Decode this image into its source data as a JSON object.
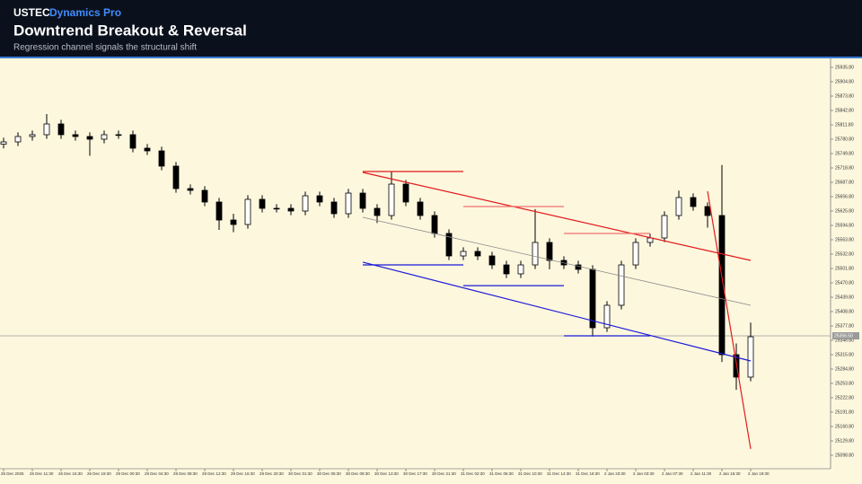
{
  "chart_data": {
    "type": "candlestick",
    "symbol": "USTEC",
    "brand": "Dynamics Pro",
    "title": "Downtrend Breakout & Reversal",
    "subtitle": "Regression channel signals the structural shift",
    "categories": [
      "25 Dec 2025",
      null,
      "26 Dec 11:30",
      null,
      "26 Dec 15:30",
      null,
      "26 Dec 19:30",
      null,
      "29 Dec 00:30",
      null,
      "29 Dec 04:30",
      null,
      "29 Dec 08:30",
      null,
      "29 Dec 12:30",
      null,
      "29 Dec 16:30",
      null,
      "29 Dec 20:30",
      null,
      "30 Dec 01:30",
      null,
      "30 Dec 05:30",
      null,
      "30 Dec 09:30",
      null,
      "30 Dec 13:30",
      null,
      "30 Dec 17:30",
      null,
      "30 Dec 21:30",
      null,
      "31 Dec 02:30",
      null,
      "31 Dec 06:30",
      null,
      "31 Dec 10:30",
      null,
      "31 Dec 14:30",
      null,
      "31 Dec 18:30",
      null,
      "2 Jan 23:30",
      null,
      "2 Jan 03:30",
      null,
      "2 Jan 07:30",
      null,
      "2 Jan 11:30",
      null,
      "2 Jan 15:30",
      null,
      "2 Jan 19:30"
    ],
    "open": [
      25770.0,
      25775.0,
      25786.6,
      25790.5,
      25813.7,
      25790.5,
      25786.6,
      25780.8,
      25790.5,
      25790.5,
      25761.4,
      25755.6,
      25722.7,
      25674.2,
      25670.4,
      25645.2,
      25606.4,
      25596.7,
      25651.0,
      25631.6,
      25631.6,
      25625.8,
      25658.7,
      25645.2,
      25620.0,
      25664.5,
      25631.6,
      25616.1,
      25683.9,
      25645.2,
      25616.1,
      25577.4,
      25528.9,
      25538.6,
      25528.9,
      25509.5,
      25490.2,
      25509.5,
      25558.0,
      25519.2,
      25509.5,
      25499.9,
      25373.9,
      25422.4,
      25509.5,
      25558.0,
      25567.7,
      25616.1,
      25654.9,
      25635.5,
      25616.1,
      25315.8,
      25267.4
    ],
    "high": [
      25784.0,
      25795.6,
      25799.5,
      25835.0,
      25822.7,
      25799.5,
      25795.6,
      25799.5,
      25799.5,
      25799.5,
      25770.4,
      25764.6,
      25731.7,
      25683.2,
      25679.4,
      25654.2,
      25620.0,
      25660.0,
      25660.0,
      25640.6,
      25640.6,
      25667.7,
      25667.7,
      25654.2,
      25673.5,
      25673.5,
      25640.6,
      25710.0,
      25692.9,
      25654.2,
      25625.1,
      25586.4,
      25547.6,
      25547.6,
      25537.9,
      25518.5,
      25518.5,
      25630.0,
      25567.0,
      25528.2,
      25518.5,
      25508.9,
      25431.4,
      25518.5,
      25567.0,
      25576.7,
      25625.1,
      25670.0,
      25663.9,
      25644.5,
      25725.0,
      25340.0,
      25385.0
    ],
    "low": [
      25761.0,
      25766.0,
      25777.6,
      25781.5,
      25781.5,
      25777.6,
      25745.0,
      25771.8,
      25781.5,
      25752.4,
      25746.6,
      25713.7,
      25665.2,
      25661.4,
      25636.2,
      25585.0,
      25580.0,
      25587.7,
      25622.6,
      25622.6,
      25616.8,
      25616.8,
      25636.2,
      25611.0,
      25611.0,
      25622.6,
      25600.0,
      25607.1,
      25636.2,
      25607.1,
      25568.4,
      25519.9,
      25519.9,
      25519.9,
      25500.5,
      25481.2,
      25481.2,
      25500.5,
      25500.0,
      25500.5,
      25490.9,
      25355.0,
      25364.9,
      25413.4,
      25500.5,
      25549.0,
      25558.7,
      25607.1,
      25626.5,
      25590.0,
      25300.0,
      25240.0,
      25258.4
    ],
    "close": [
      25775.0,
      25786.6,
      25790.5,
      25813.7,
      25790.5,
      25786.6,
      25780.8,
      25790.5,
      25790.5,
      25761.4,
      25755.6,
      25722.7,
      25674.2,
      25670.4,
      25645.2,
      25606.4,
      25596.7,
      25651.0,
      25631.6,
      25631.6,
      25625.8,
      25658.7,
      25645.2,
      25620.0,
      25664.5,
      25631.6,
      25616.1,
      25683.9,
      25645.2,
      25616.1,
      25577.4,
      25528.9,
      25538.6,
      25528.9,
      25509.5,
      25490.2,
      25509.5,
      25558.0,
      25519.2,
      25509.5,
      25499.9,
      25373.9,
      25422.4,
      25509.5,
      25558.0,
      25567.7,
      25616.1,
      25654.9,
      25635.5,
      25616.1,
      25315.8,
      25267.4,
      25354.5
    ],
    "ylim": [
      25069.7,
      25955.2
    ],
    "yticks": [
      {
        "value": 25935.8,
        "label": "25935.80"
      },
      {
        "value": 25904.8,
        "label": "25904.80"
      },
      {
        "value": 25873.8,
        "label": "25873.80"
      },
      {
        "value": 25842.8,
        "label": "25842.80"
      },
      {
        "value": 25811.8,
        "label": "25811.80"
      },
      {
        "value": 25780.8,
        "label": "25780.80"
      },
      {
        "value": 25749.8,
        "label": "25749.80"
      },
      {
        "value": 25718.8,
        "label": "25718.80"
      },
      {
        "value": 25687.8,
        "label": "25687.80"
      },
      {
        "value": 25656.8,
        "label": "25656.80"
      },
      {
        "value": 25625.8,
        "label": "25625.80"
      },
      {
        "value": 25594.8,
        "label": "25594.80"
      },
      {
        "value": 25563.8,
        "label": "25563.80"
      },
      {
        "value": 25532.8,
        "label": "25532.80"
      },
      {
        "value": 25501.8,
        "label": "25501.80"
      },
      {
        "value": 25470.8,
        "label": "25470.80"
      },
      {
        "value": 25439.8,
        "label": "25439.80"
      },
      {
        "value": 25408.8,
        "label": "25408.80"
      },
      {
        "value": 25377.8,
        "label": "25377.80"
      },
      {
        "value": 25346.8,
        "label": "25346.80"
      },
      {
        "value": 25315.8,
        "label": "25315.80"
      },
      {
        "value": 25284.8,
        "label": "25284.80"
      },
      {
        "value": 25253.8,
        "label": "25253.80"
      },
      {
        "value": 25222.8,
        "label": "25222.80"
      },
      {
        "value": 25191.8,
        "label": "25191.80"
      },
      {
        "value": 25160.8,
        "label": "25160.80"
      },
      {
        "value": 25129.8,
        "label": "25129.80"
      },
      {
        "value": 25098.8,
        "label": "25098.80"
      }
    ],
    "current_price": {
      "value": 25356.5,
      "label": "25356.50"
    },
    "channel": {
      "start": 25,
      "end": 52,
      "upper": [
        25709.1,
        25519.2
      ],
      "middle": [
        25612.2,
        25422.4
      ],
      "lower": [
        25515.4,
        25302.2
      ],
      "upper_color": "#e31a1c",
      "middle_color": "#8a8a8a",
      "lower_color": "#1a1ad8"
    },
    "levels": [
      {
        "start": 25,
        "end": 32,
        "price": 25711.0,
        "color": "#e31a1c"
      },
      {
        "start": 32,
        "end": 39,
        "price": 25635.5,
        "color": "#f07070"
      },
      {
        "start": 39,
        "end": 45,
        "price": 25577.4,
        "color": "#f07070"
      },
      {
        "start": 25,
        "end": 32,
        "price": 25509.5,
        "color": "#1a1ad8"
      },
      {
        "start": 32,
        "end": 39,
        "price": 25464.7,
        "color": "#1a1ad8"
      },
      {
        "start": 39,
        "end": 45,
        "price": 25356.5,
        "color": "#1a1ad8"
      }
    ],
    "reversal": {
      "start": 49,
      "end": 52,
      "prices": [
        25668.4,
        25112.4
      ],
      "color": "#e31a1c"
    },
    "bull_color": "#ffffff",
    "bear_color": "#000000"
  }
}
